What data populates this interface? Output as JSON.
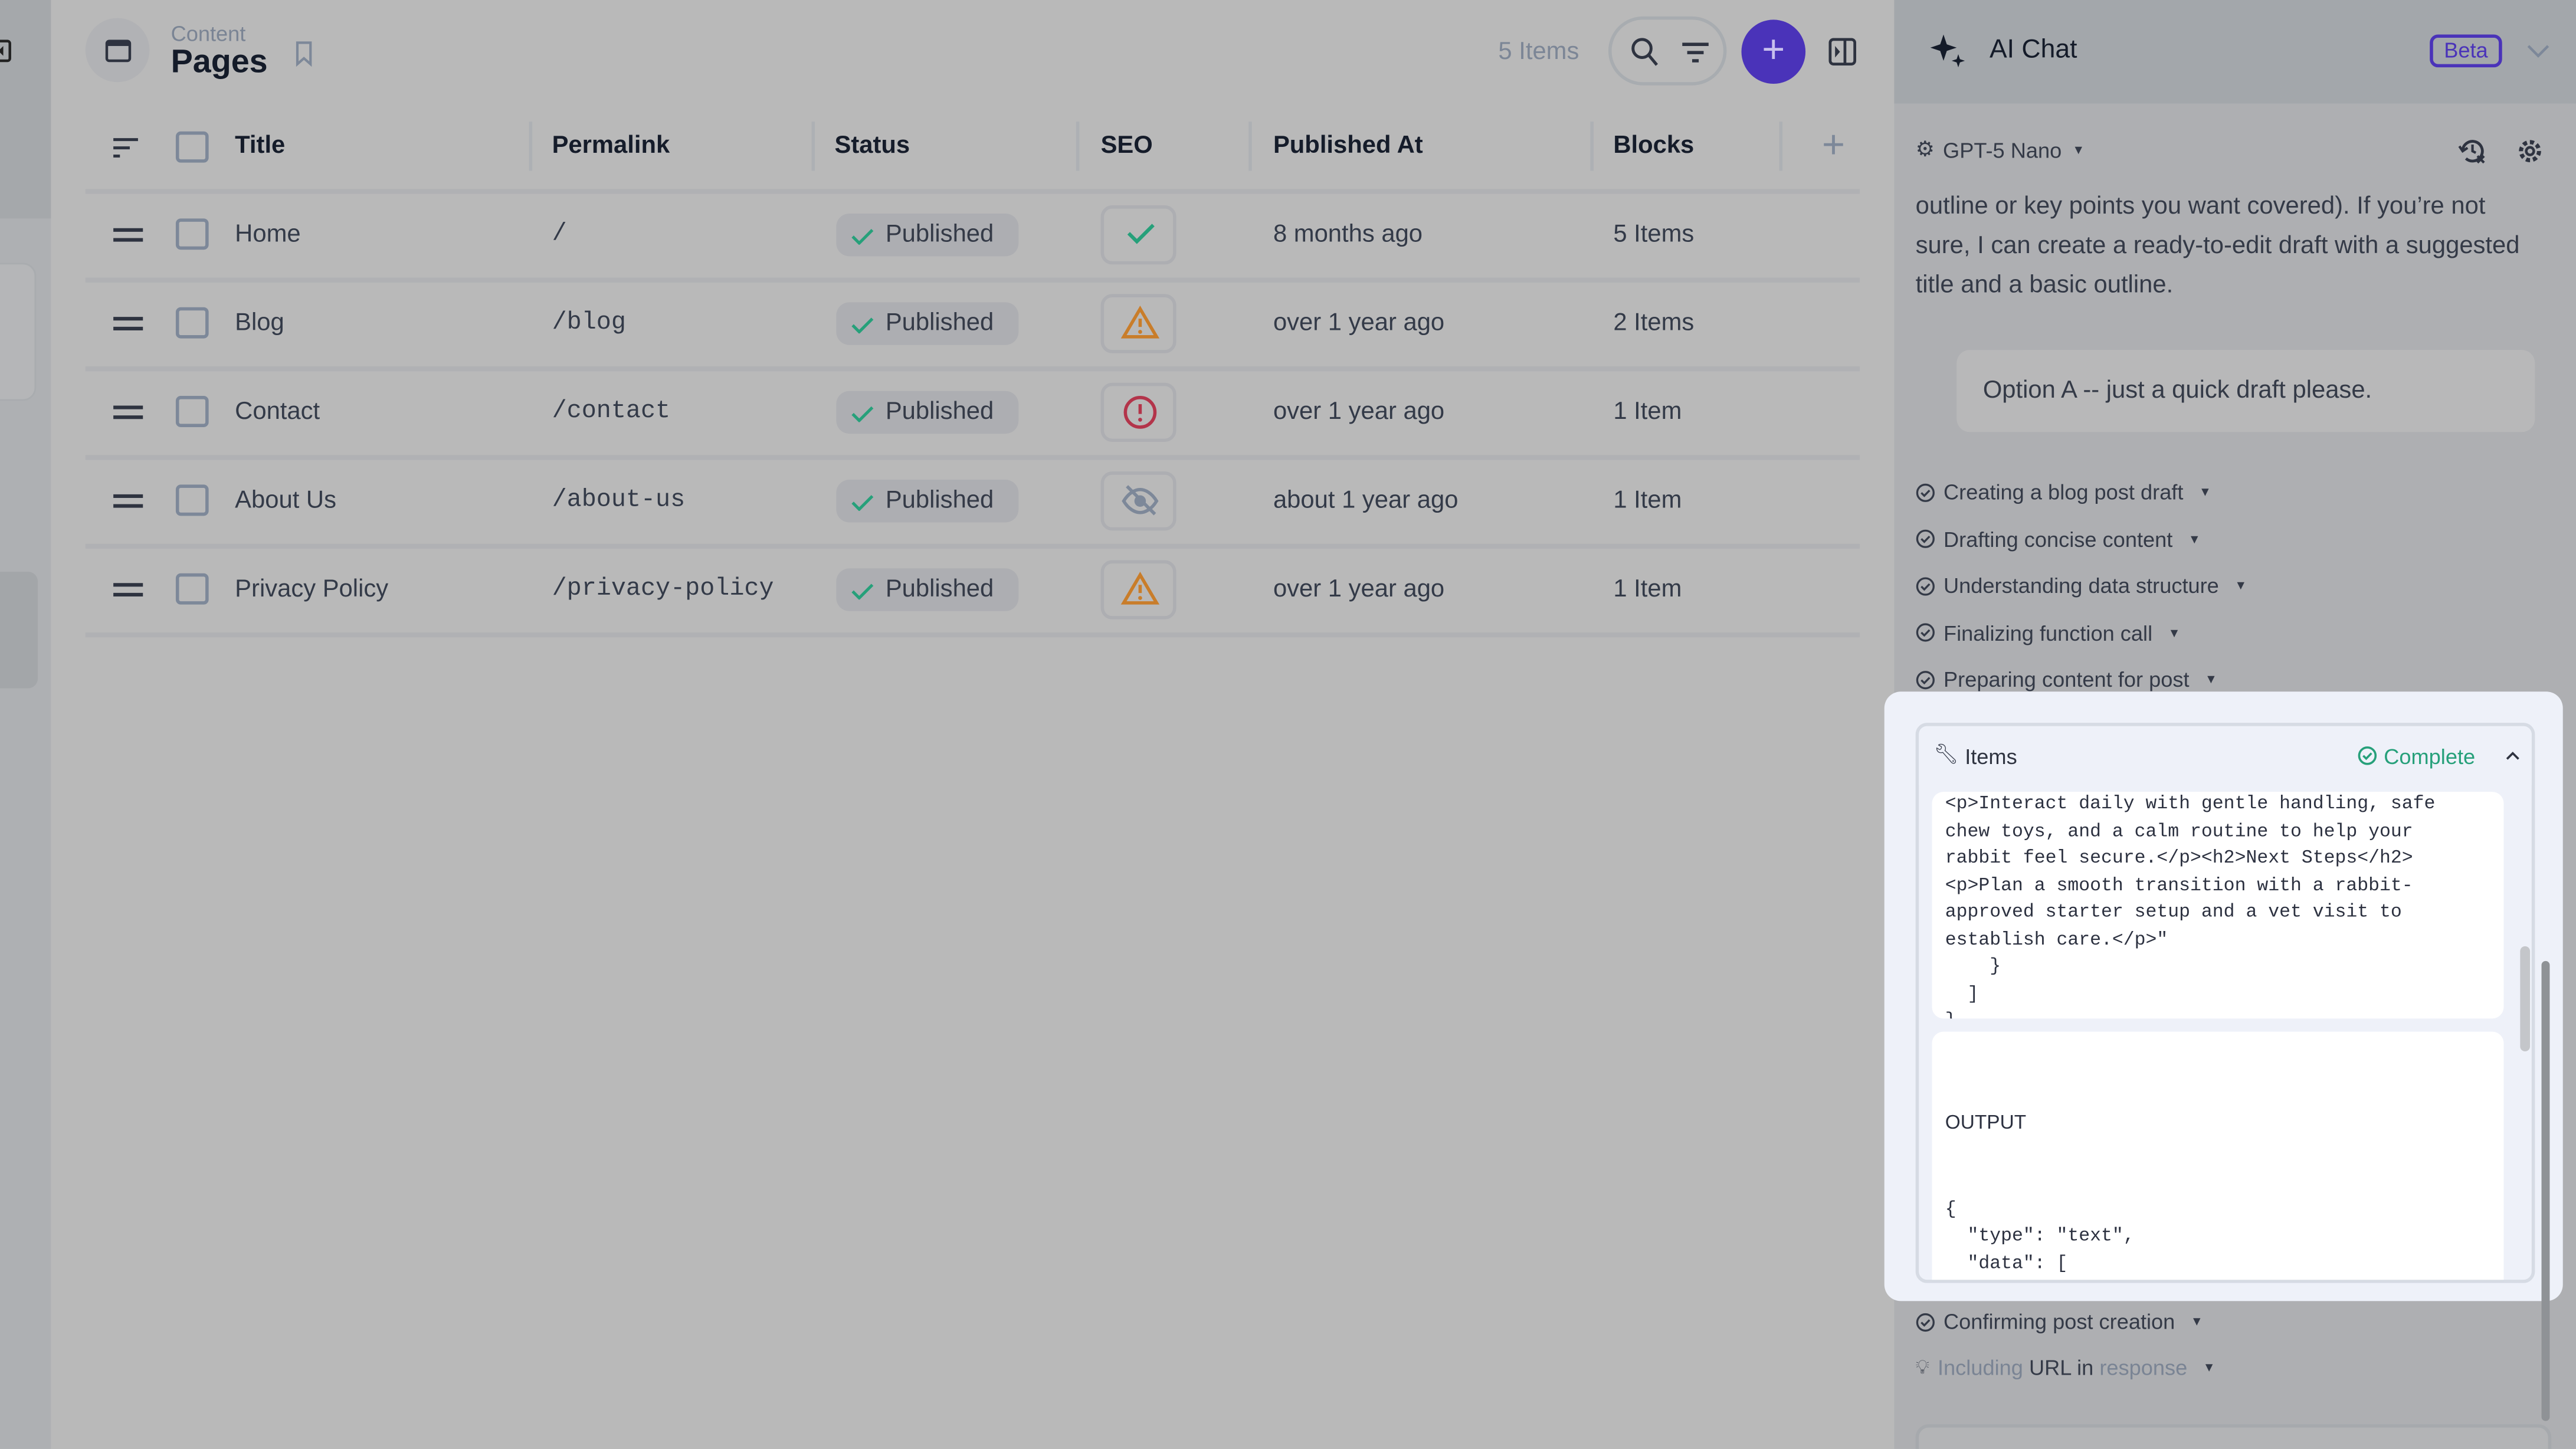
{
  "header": {
    "breadcrumb": "Content",
    "title": "Pages",
    "item_count": "5 Items"
  },
  "table": {
    "columns": [
      "Title",
      "Permalink",
      "Status",
      "SEO",
      "Published At",
      "Blocks"
    ],
    "rows": [
      {
        "title": "Home",
        "permalink": "/",
        "status": "Published",
        "seo": "ok",
        "seo_icon": "check-icon",
        "published_at": "8 months ago",
        "blocks": "5 Items"
      },
      {
        "title": "Blog",
        "permalink": "/blog",
        "status": "Published",
        "seo": "warning",
        "seo_icon": "warning-triangle-icon",
        "published_at": "over 1 year ago",
        "blocks": "2 Items"
      },
      {
        "title": "Contact",
        "permalink": "/contact",
        "status": "Published",
        "seo": "error",
        "seo_icon": "alert-circle-icon",
        "published_at": "over 1 year ago",
        "blocks": "1 Item"
      },
      {
        "title": "About Us",
        "permalink": "/about-us",
        "status": "Published",
        "seo": "hidden",
        "seo_icon": "eye-off-icon",
        "published_at": "about 1 year ago",
        "blocks": "1 Item"
      },
      {
        "title": "Privacy Policy",
        "permalink": "/privacy-policy",
        "status": "Published",
        "seo": "warning",
        "seo_icon": "warning-triangle-icon",
        "published_at": "over 1 year ago",
        "blocks": "1 Item"
      }
    ]
  },
  "chat": {
    "title": "AI Chat",
    "badge": "Beta",
    "model": "GPT-5 Nano",
    "assistant_message": "outline or key points you want covered). If you’re not sure, I can create a ready-to-edit draft with a suggested title and a basic outline.",
    "user_message": "Option A -- just a quick draft please.",
    "steps": [
      "Creating a blog post draft",
      "Drafting concise content",
      "Understanding data structure",
      "Finalizing function call",
      "Preparing content for post"
    ],
    "tool_call": {
      "name": "Items",
      "status": "Complete",
      "input_tail": "<p>Interact daily with gentle handling, safe chew toys, and a calm routine to help your rabbit feel secure.</p><h2>Next Steps</h2><p>Plan a smooth transition with a rabbit-approved starter setup and a vet visit to establish care.</p>\"\n    }\n  ]\n}",
      "output_label": "OUTPUT",
      "output": "{\n  \"type\": \"text\",\n  \"data\": [\n    {\n      \"content\": \"<p>Rabbits are charming, curious companions that can bring a lot of joy to a home. This quick starter guide covers the"
    },
    "steps_after": [
      "Confirming post creation"
    ],
    "thinking_step": {
      "prefix": "Including ",
      "highlight": "URL in ",
      "suffix": "response"
    }
  },
  "colors": {
    "accent": "#4a33b9",
    "success": "#26a07a",
    "warning": "#c97d2a",
    "error": "#b3344a"
  }
}
